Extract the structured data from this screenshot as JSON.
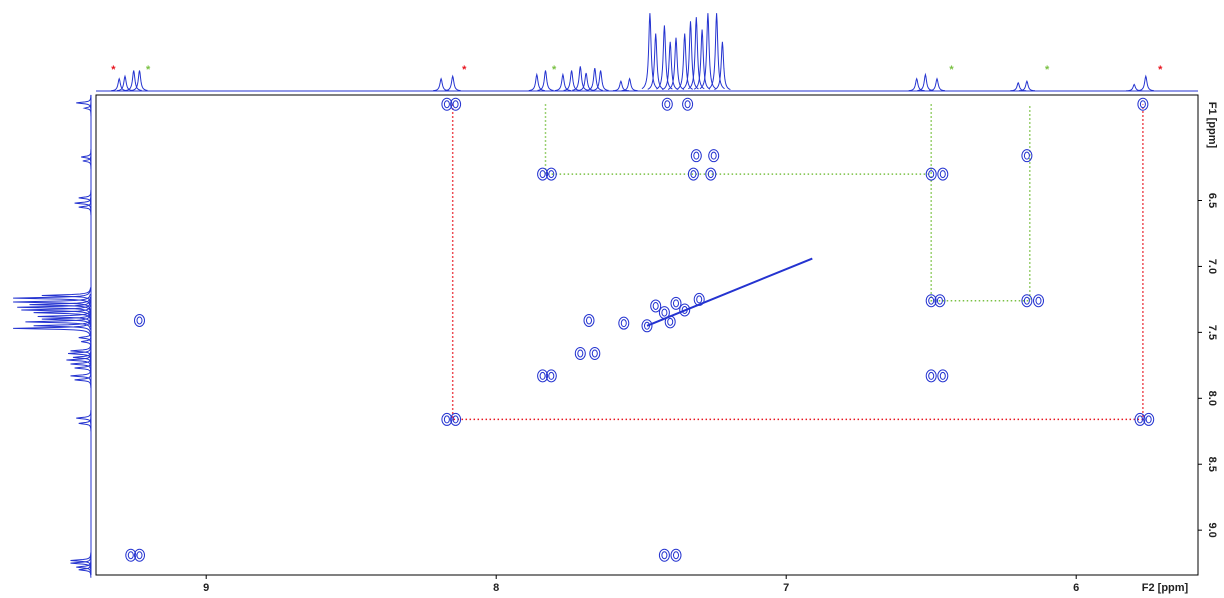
{
  "chart_data": {
    "type": "contour",
    "x_label": "F2 [ppm]",
    "y_label": "F1 [ppm]",
    "xlim": [
      9.38,
      5.58
    ],
    "xticks": [
      9,
      8,
      7,
      6
    ],
    "ylim": [
      5.7,
      9.34
    ],
    "yticks": [
      {
        "value": 6.5,
        "label": "6.5"
      },
      {
        "value": 7.0,
        "label": "7.0"
      },
      {
        "value": 7.5,
        "label": "7.5"
      },
      {
        "value": 8.0,
        "label": "8.0"
      },
      {
        "value": 8.5,
        "label": "8.5"
      },
      {
        "value": 9.0,
        "label": "9.0"
      }
    ],
    "color": "#2433d0",
    "cross_peaks": {
      "x": [
        8.17,
        8.14,
        7.41,
        7.34,
        5.77,
        7.31,
        7.25,
        6.17,
        7.84,
        7.81,
        7.32,
        7.26,
        6.5,
        6.46,
        9.23,
        7.68,
        7.56,
        7.45,
        7.38,
        7.3,
        7.42,
        7.35,
        7.48,
        7.4,
        7.71,
        7.66,
        7.84,
        7.81,
        6.5,
        6.46,
        6.5,
        6.47,
        6.17,
        6.13,
        8.17,
        8.14,
        5.78,
        5.75,
        9.26,
        9.23,
        7.42,
        7.38
      ],
      "y": [
        5.77,
        5.77,
        5.77,
        5.77,
        5.77,
        6.16,
        6.16,
        6.16,
        6.3,
        6.3,
        6.3,
        6.3,
        6.3,
        6.3,
        7.41,
        7.41,
        7.43,
        7.3,
        7.28,
        7.25,
        7.35,
        7.33,
        7.45,
        7.42,
        7.66,
        7.66,
        7.83,
        7.83,
        7.83,
        7.83,
        7.26,
        7.26,
        7.26,
        7.26,
        8.16,
        8.16,
        8.16,
        8.16,
        9.19,
        9.19,
        9.19,
        9.19
      ]
    },
    "diagonal": {
      "x": [
        7.48,
        6.91
      ],
      "y": [
        7.45,
        6.94
      ]
    },
    "spectrum_1d": {
      "x": [
        9.3,
        9.28,
        9.25,
        9.23,
        8.19,
        8.15,
        7.86,
        7.83,
        7.77,
        7.74,
        7.71,
        7.69,
        7.66,
        7.64,
        7.57,
        7.54,
        7.47,
        7.45,
        7.42,
        7.4,
        7.38,
        7.35,
        7.33,
        7.31,
        7.29,
        7.27,
        7.24,
        7.22,
        6.55,
        6.52,
        6.48,
        6.2,
        6.17,
        5.8,
        5.76
      ],
      "heights": [
        15,
        18,
        25,
        25,
        15,
        18,
        20,
        25,
        20,
        25,
        30,
        22,
        28,
        25,
        12,
        15,
        95,
        70,
        80,
        60,
        65,
        70,
        85,
        90,
        75,
        95,
        95,
        60,
        15,
        20,
        15,
        10,
        12,
        8,
        18
      ]
    },
    "markers": [
      {
        "x": 9.32,
        "label": "*",
        "color": "#e8141e"
      },
      {
        "x": 9.2,
        "label": "*",
        "color": "#7ac143"
      },
      {
        "x": 8.11,
        "label": "*",
        "color": "#e8141e"
      },
      {
        "x": 7.8,
        "label": "*",
        "color": "#7ac143"
      },
      {
        "x": 6.43,
        "label": "*",
        "color": "#7ac143"
      },
      {
        "x": 6.1,
        "label": "*",
        "color": "#7ac143"
      },
      {
        "x": 5.71,
        "label": "*",
        "color": "#e8141e"
      }
    ],
    "correlations": [
      {
        "color": "#e8141e",
        "x": [
          8.15,
          8.15,
          5.77,
          5.77
        ],
        "y": [
          5.77,
          8.16,
          8.16,
          5.77
        ]
      },
      {
        "color": "#7ac143",
        "x": [
          7.83,
          7.83,
          6.5
        ],
        "y": [
          5.77,
          6.3,
          6.3
        ]
      },
      {
        "color": "#7ac143",
        "x": [
          6.5,
          6.5,
          6.16,
          6.16
        ],
        "y": [
          5.77,
          7.26,
          7.26,
          5.77
        ]
      }
    ]
  }
}
